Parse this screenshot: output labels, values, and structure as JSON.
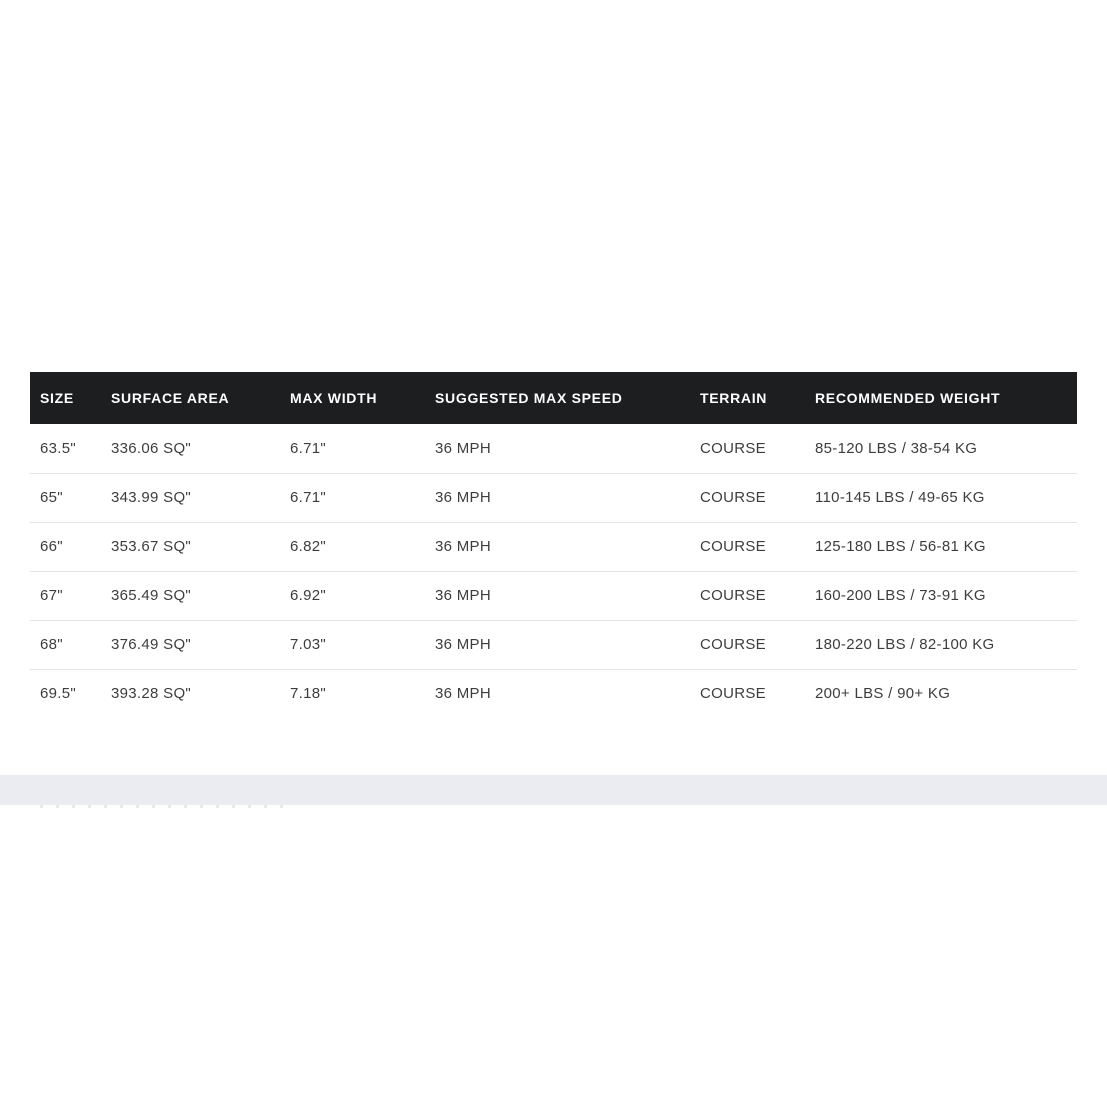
{
  "table": {
    "columns": [
      {
        "id": "size",
        "label": "SIZE"
      },
      {
        "id": "surface_area",
        "label": "SURFACE AREA"
      },
      {
        "id": "max_width",
        "label": "MAX WIDTH"
      },
      {
        "id": "suggested_max_speed",
        "label": "SUGGESTED MAX SPEED"
      },
      {
        "id": "terrain",
        "label": "TERRAIN"
      },
      {
        "id": "recommended_weight",
        "label": "RECOMMENDED WEIGHT"
      }
    ],
    "rows": [
      [
        "63.5\"",
        "336.06 SQ\"",
        "6.71\"",
        "36 MPH",
        "COURSE",
        "85-120 LBS / 38-54 KG"
      ],
      [
        "65\"",
        "343.99 SQ\"",
        "6.71\"",
        "36 MPH",
        "COURSE",
        "110-145 LBS / 49-65 KG"
      ],
      [
        "66\"",
        "353.67 SQ\"",
        "6.82\"",
        "36 MPH",
        "COURSE",
        "125-180 LBS / 56-81 KG"
      ],
      [
        "67\"",
        "365.49 SQ\"",
        "6.92\"",
        "36 MPH",
        "COURSE",
        "160-200 LBS / 73-91 KG"
      ],
      [
        "68\"",
        "376.49 SQ\"",
        "7.03\"",
        "36 MPH",
        "COURSE",
        "180-220 LBS / 82-100 KG"
      ],
      [
        "69.5\"",
        "393.28 SQ\"",
        "7.18\"",
        "36 MPH",
        "COURSE",
        "200+ LBS / 90+ KG"
      ]
    ]
  },
  "colors": {
    "header_bg": "#1d1e20",
    "header_text": "#ffffff",
    "cell_text": "#3d3d3d",
    "row_divider": "#e4e4e7",
    "footer_band": "#ebecf1",
    "page_bg": "#ffffff"
  }
}
